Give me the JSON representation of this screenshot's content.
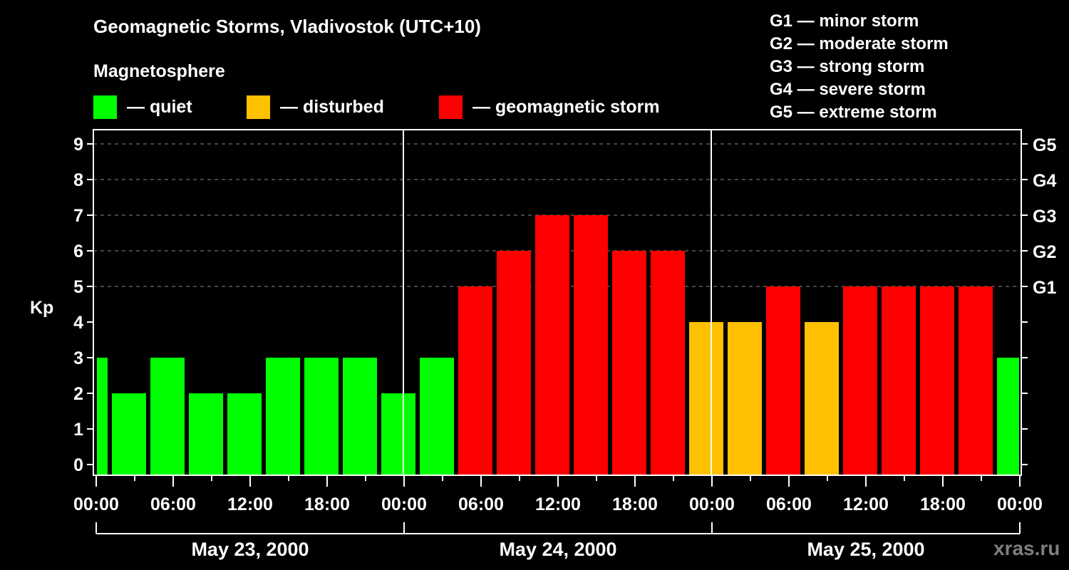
{
  "header": {
    "title": "Geomagnetic Storms, Vladivostok (UTC+10)",
    "subtitle": "Magnetosphere"
  },
  "legend": {
    "items": [
      {
        "label": "— quiet",
        "color": "#00ff00"
      },
      {
        "label": "— disturbed",
        "color": "#ffc000"
      },
      {
        "label": "— geomagnetic storm",
        "color": "#ff0000"
      }
    ]
  },
  "storm_scale": {
    "items": [
      "G1 — minor storm",
      "G2 — moderate storm",
      "G3 — strong storm",
      "G4 — severe storm",
      "G5 — extreme storm"
    ]
  },
  "watermark": "xras.ru",
  "chart_data": {
    "type": "bar",
    "title": "Geomagnetic Storms, Vladivostok (UTC+10)",
    "ylabel": "Kp",
    "xlabel": "",
    "ylim": [
      0,
      9
    ],
    "yticks": [
      0,
      1,
      2,
      3,
      4,
      5,
      6,
      7,
      8,
      9
    ],
    "right_axis_labels": [
      {
        "kp": 5,
        "label": "G1"
      },
      {
        "kp": 6,
        "label": "G2"
      },
      {
        "kp": 7,
        "label": "G3"
      },
      {
        "kp": 8,
        "label": "G4"
      },
      {
        "kp": 9,
        "label": "G5"
      }
    ],
    "grid": "dashed horizontal at Kp 5-9",
    "x_tick_labels": [
      "00:00",
      "06:00",
      "12:00",
      "18:00",
      "00:00",
      "06:00",
      "12:00",
      "18:00",
      "00:00",
      "06:00",
      "12:00",
      "18:00",
      "00:00"
    ],
    "days": [
      "May 23, 2000",
      "May 24, 2000",
      "May 25, 2000"
    ],
    "bar_interval_hours": 3,
    "first_bar_start_hour": -2,
    "categories": [
      "-2–1",
      "1–4",
      "4–7",
      "7–10",
      "10–13",
      "13–16",
      "16–19",
      "19–22",
      "22–1",
      "1–4",
      "4–7",
      "7–10",
      "10–13",
      "13–16",
      "16–19",
      "19–22",
      "22–1",
      "1–4",
      "4–7",
      "7–10",
      "10–13",
      "13–16",
      "16–19",
      "19–22",
      "22–1"
    ],
    "values": [
      3,
      2,
      3,
      2,
      2,
      3,
      3,
      3,
      2,
      3,
      5,
      6,
      7,
      7,
      6,
      6,
      4,
      4,
      5,
      4,
      5,
      5,
      5,
      5,
      3
    ],
    "status": [
      "quiet",
      "quiet",
      "quiet",
      "quiet",
      "quiet",
      "quiet",
      "quiet",
      "quiet",
      "quiet",
      "quiet",
      "storm",
      "storm",
      "storm",
      "storm",
      "storm",
      "storm",
      "disturbed",
      "disturbed",
      "storm",
      "disturbed",
      "storm",
      "storm",
      "storm",
      "storm",
      "quiet"
    ],
    "colors": {
      "quiet": "#00ff00",
      "disturbed": "#ffc000",
      "storm": "#ff0000"
    }
  }
}
